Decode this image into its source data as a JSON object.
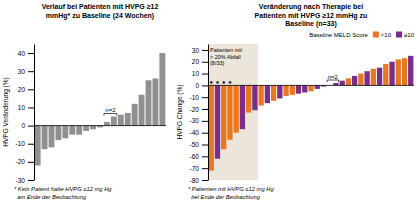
{
  "chart_data": [
    {
      "type": "bar",
      "title": "Verlauf bei Patienten mit HVPG ≥12\nmmHg* zu Baseline (24 Wochen)",
      "y_label": "HVPG Veränderung (%)",
      "categories": [
        null,
        null,
        null,
        null,
        null,
        null,
        null,
        null,
        null,
        null,
        null,
        null,
        null,
        null,
        null,
        null,
        null,
        null,
        null
      ],
      "values": [
        -22,
        -13,
        -12,
        -8,
        -7,
        -5,
        -5,
        -3,
        -2,
        -1,
        2,
        5,
        6,
        7,
        12,
        17,
        25,
        26,
        40
      ],
      "color": "#909090",
      "ylim": [
        -30,
        45
      ],
      "yticks": [
        -30,
        -20,
        -10,
        0,
        10,
        20,
        30,
        40
      ],
      "tick_labels": "y",
      "annotations": [
        "n=2",
        "* Kein Patient hatte HVPG ≤12 mg Hg\n  am Ende der Beobachtung"
      ]
    },
    {
      "type": "bar",
      "title": "Veränderung nach Therapie bei\nPatienten mit HVPG ≥12 mmHg zu\nBaseline (n=33)",
      "y_label": "HVPG Change (%)",
      "categories": [
        null,
        null,
        null,
        null,
        null,
        null,
        null,
        null,
        null,
        null,
        null,
        null,
        null,
        null,
        null,
        null,
        null,
        null,
        null,
        null,
        null,
        null,
        null,
        null,
        null,
        null,
        null,
        null,
        null,
        null,
        null,
        null,
        null
      ],
      "series": [
        {
          "name": "<10",
          "color": "#E87722",
          "values": [
            -72,
            null,
            -54,
            -46,
            -40,
            null,
            -23,
            null,
            -17,
            null,
            -13,
            null,
            -9,
            -8,
            null,
            null,
            -5,
            null,
            null,
            null,
            null,
            null,
            6,
            null,
            10,
            null,
            14,
            null,
            18,
            null,
            22,
            23,
            null
          ]
        },
        {
          "name": "≥10",
          "color": "#7B2D8B",
          "values": [
            null,
            -62,
            null,
            null,
            null,
            -37,
            null,
            -21,
            null,
            -15,
            null,
            -11,
            null,
            null,
            -7,
            -6,
            null,
            -3,
            -1,
            0,
            2,
            4,
            null,
            8,
            null,
            12,
            null,
            15,
            null,
            20,
            null,
            null,
            25
          ]
        }
      ],
      "highlight_count": 8,
      "ylim": [
        -80,
        35
      ],
      "yticks": [
        -80,
        -70,
        -60,
        -50,
        -40,
        -30,
        -20,
        -10,
        0,
        10,
        20,
        30
      ],
      "tick_labels": "y",
      "legend": "upper right",
      "annotations": [
        "★",
        "★",
        "★",
        "★",
        "Patienten mit\n> 20% Abfall\n(8/33)",
        "n=2",
        "* Patienten mit HVPG ≤12 mg Hg\n  bei Ende der Beobachtung",
        "Baseline MELD Score"
      ]
    }
  ]
}
